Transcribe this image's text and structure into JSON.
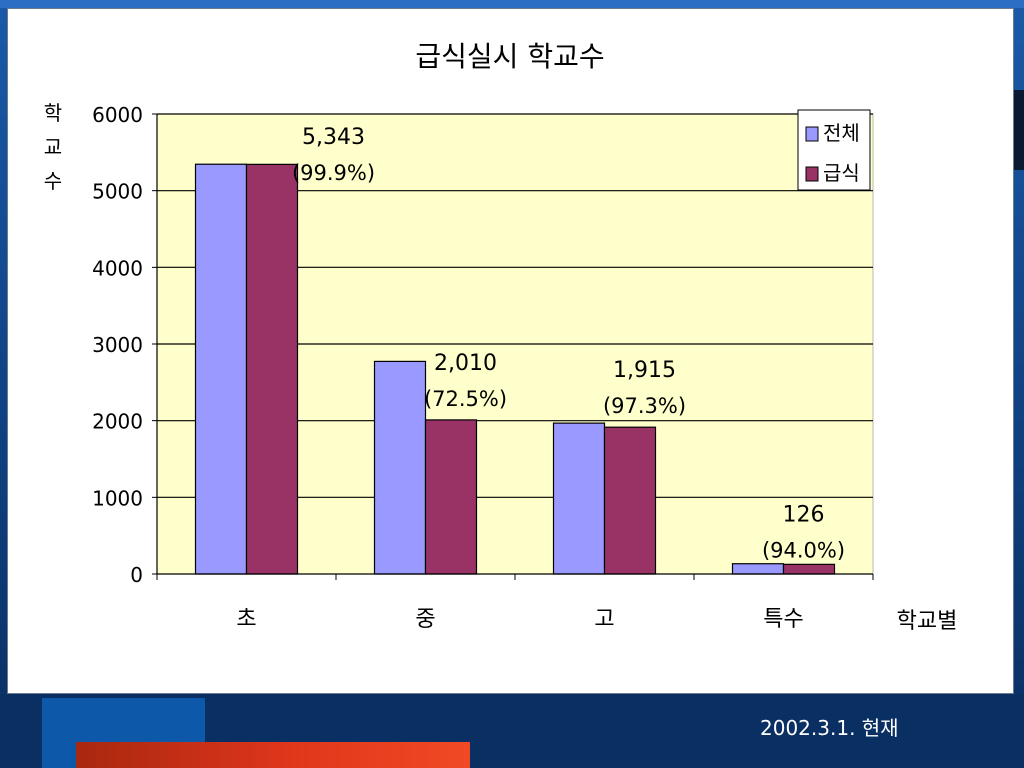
{
  "footer": {
    "date": "2002.3.1. 현재"
  },
  "chart_data": {
    "type": "bar",
    "title": "급식실시 학교수",
    "ylabel": "학교수",
    "xlabel": "학교별",
    "ylim": [
      0,
      6000
    ],
    "yticks": [
      0,
      1000,
      2000,
      3000,
      4000,
      5000,
      6000
    ],
    "categories": [
      "초",
      "중",
      "고",
      "특수"
    ],
    "series": [
      {
        "name": "전체",
        "color": "#9999ff",
        "values": [
          5345,
          2773,
          1968,
          134
        ]
      },
      {
        "name": "급식",
        "color": "#993366",
        "values": [
          5343,
          2010,
          1915,
          126
        ]
      }
    ],
    "annotations": [
      {
        "count": "5,343",
        "pct": "(99.9%)"
      },
      {
        "count": "2,010",
        "pct": "(72.5%)"
      },
      {
        "count": "1,915",
        "pct": "(97.3%)"
      },
      {
        "count": "126",
        "pct": "(94.0%)"
      }
    ],
    "legend_position": "top-right",
    "plot_background": "#ffffcc",
    "grid": true
  }
}
